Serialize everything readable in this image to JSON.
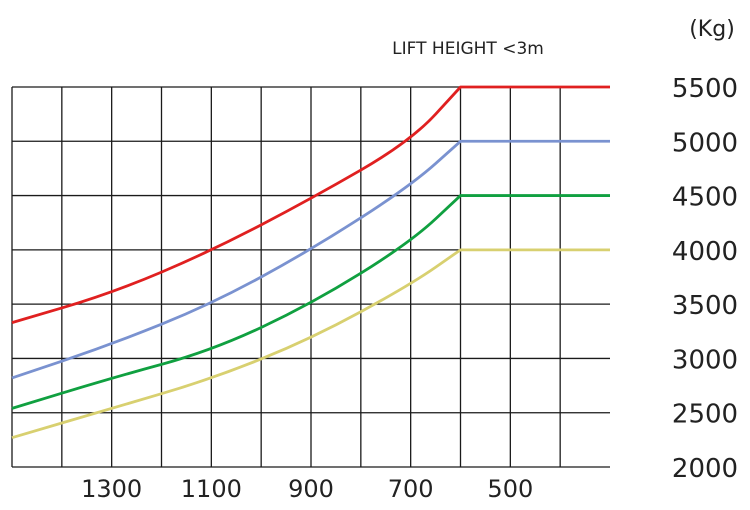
{
  "chart_data": {
    "type": "line",
    "title": "LIFT HEIGHT <3m",
    "unit_label": "(Kg)",
    "xlabel": "",
    "ylabel": "",
    "x_ticks": [
      "1300",
      "1100",
      "900",
      "700",
      "500"
    ],
    "y_ticks": [
      "5500",
      "5000",
      "4500",
      "4000",
      "3500",
      "3000",
      "2500",
      "2000"
    ],
    "xlim": [
      1500,
      300
    ],
    "ylim": [
      2000,
      5500
    ],
    "grid": true,
    "series": [
      {
        "color": "#e02020",
        "points": [
          [
            1500,
            3330
          ],
          [
            1300,
            3600
          ],
          [
            1100,
            3990
          ],
          [
            900,
            4470
          ],
          [
            700,
            5000
          ],
          [
            600,
            5500
          ],
          [
            300,
            5500
          ]
        ]
      },
      {
        "color": "#7a92d0",
        "points": [
          [
            1500,
            2820
          ],
          [
            1300,
            3130
          ],
          [
            1100,
            3500
          ],
          [
            900,
            4000
          ],
          [
            700,
            4590
          ],
          [
            600,
            5000
          ],
          [
            300,
            5000
          ]
        ]
      },
      {
        "color": "#10a040",
        "points": [
          [
            1500,
            2540
          ],
          [
            1300,
            2820
          ],
          [
            1100,
            3070
          ],
          [
            900,
            3500
          ],
          [
            700,
            4070
          ],
          [
            600,
            4500
          ],
          [
            300,
            4500
          ]
        ]
      },
      {
        "color": "#d8d070",
        "points": [
          [
            1500,
            2270
          ],
          [
            1300,
            2540
          ],
          [
            1100,
            2810
          ],
          [
            900,
            3180
          ],
          [
            700,
            3680
          ],
          [
            600,
            4000
          ],
          [
            300,
            4000
          ]
        ]
      }
    ]
  }
}
